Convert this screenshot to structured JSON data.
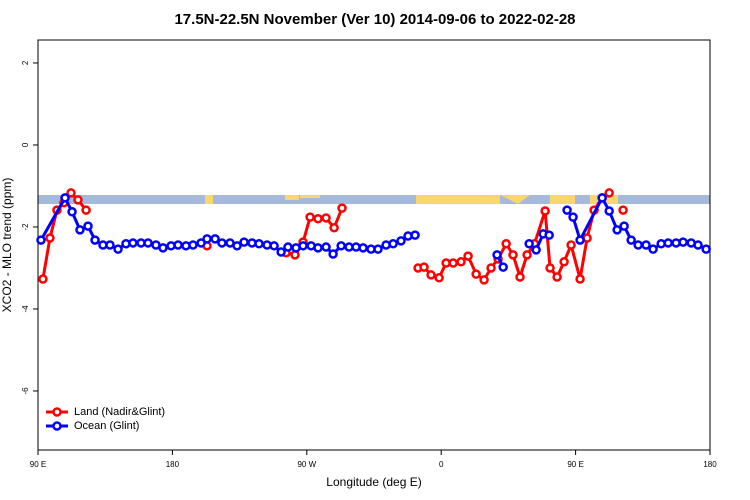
{
  "chart_data": {
    "type": "line",
    "title": "17.5N-22.5N November (Ver 10)   2014-09-06 to 2022-02-28",
    "xlabel": "Longitude (deg E)",
    "ylabel": "XCO2 - MLO trend (ppm)",
    "xlim": [
      90,
      540
    ],
    "ylim": [
      -7.44,
      2.56
    ],
    "xticks": [
      {
        "value": 90,
        "label": "90 E"
      },
      180,
      {
        "value": 270,
        "label": "90 W"
      },
      {
        "value": 360,
        "label": "0"
      },
      {
        "value": 450,
        "label": "90 E"
      },
      {
        "value": 540,
        "label": "180"
      }
    ],
    "yticks": [
      2,
      0,
      -2,
      -4,
      -6
    ],
    "grid": false,
    "legend": "lower left",
    "series": [
      {
        "name": "Land (Nadir&Glint)",
        "color": "#ff0000",
        "x": [
          93.3,
          98,
          102.7,
          107.4,
          112.1,
          116.8,
          122.2,
          160,
          203.2,
          230,
          256.1,
          262.1,
          267.5,
          272.2,
          277.5,
          282.9,
          288.3,
          293.6,
          320,
          344.5,
          348.5,
          353.2,
          358.6,
          363.3,
          368,
          373.3,
          378,
          383.4,
          388.7,
          393.4,
          398.1,
          403.5,
          408.1,
          412.8,
          417.5,
          422.5,
          429.6,
          432.9,
          437.6,
          442.3,
          447,
          453,
          457.7,
          462.4,
          467.8,
          472.5,
          477,
          481.8
        ],
        "values": [
          -3.27,
          -2.27,
          -1.59,
          -1.41,
          -1.17,
          -1.34,
          -1.59,
          null,
          -2.46,
          null,
          -2.63,
          -2.68,
          -2.37,
          -1.76,
          -1.8,
          -1.78,
          -2.02,
          -1.54,
          null,
          -3.0,
          -2.98,
          -3.17,
          -3.24,
          -2.88,
          -2.88,
          -2.85,
          -2.71,
          -3.15,
          -3.29,
          -3.0,
          -2.78,
          -2.41,
          -2.68,
          -3.22,
          -2.68,
          -2.41,
          -1.61,
          -3.0,
          -3.22,
          -2.85,
          -2.44,
          -3.27,
          -2.27,
          -1.59,
          -1.29,
          -1.17,
          null,
          -1.59
        ]
      },
      {
        "name": "Ocean (Glint)",
        "color": "#0000ff",
        "x": [
          92,
          108.1,
          112.8,
          118.1,
          123.5,
          128.2,
          133.5,
          138.2,
          143.6,
          148.9,
          153.6,
          159,
          163.7,
          169,
          173.7,
          179.1,
          183.8,
          189.1,
          193.8,
          199.2,
          203.2,
          208.6,
          213.2,
          218.6,
          223.3,
          228,
          233.3,
          238,
          243.4,
          248.1,
          252.8,
          257.4,
          262.8,
          267.5,
          272.9,
          277.5,
          282.9,
          287.6,
          293,
          298.3,
          303,
          307.7,
          313,
          317.7,
          323.1,
          327.8,
          333.1,
          337.8,
          342.5,
          370,
          397.4,
          401.5,
          410,
          418.9,
          423.6,
          428.3,
          432.3,
          438,
          444.3,
          448.3,
          453,
          467.8,
          472.5,
          477.8,
          482.5,
          487.2,
          491.9,
          497.2,
          501.9,
          507.3,
          512,
          517.3,
          522,
          527.4,
          532,
          537.4
        ],
        "values": [
          -2.32,
          -1.29,
          -1.63,
          -2.07,
          -1.98,
          -2.32,
          -2.44,
          -2.44,
          -2.54,
          -2.41,
          -2.39,
          -2.39,
          -2.39,
          -2.44,
          -2.51,
          -2.46,
          -2.44,
          -2.46,
          -2.44,
          -2.39,
          -2.29,
          -2.29,
          -2.39,
          -2.39,
          -2.46,
          -2.37,
          -2.39,
          -2.41,
          -2.44,
          -2.46,
          -2.61,
          -2.49,
          -2.51,
          -2.46,
          -2.46,
          -2.51,
          -2.49,
          -2.66,
          -2.46,
          -2.49,
          -2.49,
          -2.51,
          -2.54,
          -2.54,
          -2.44,
          -2.41,
          -2.34,
          -2.22,
          -2.2,
          null,
          -2.68,
          -2.98,
          null,
          -2.41,
          -2.56,
          -2.17,
          -2.2,
          null,
          -1.59,
          -1.76,
          -2.32,
          -1.29,
          -1.61,
          -2.07,
          -1.98,
          -2.32,
          -2.44,
          -2.44,
          -2.54,
          -2.41,
          -2.39,
          -2.39,
          -2.37,
          -2.39,
          -2.44,
          -2.54
        ]
      }
    ]
  }
}
